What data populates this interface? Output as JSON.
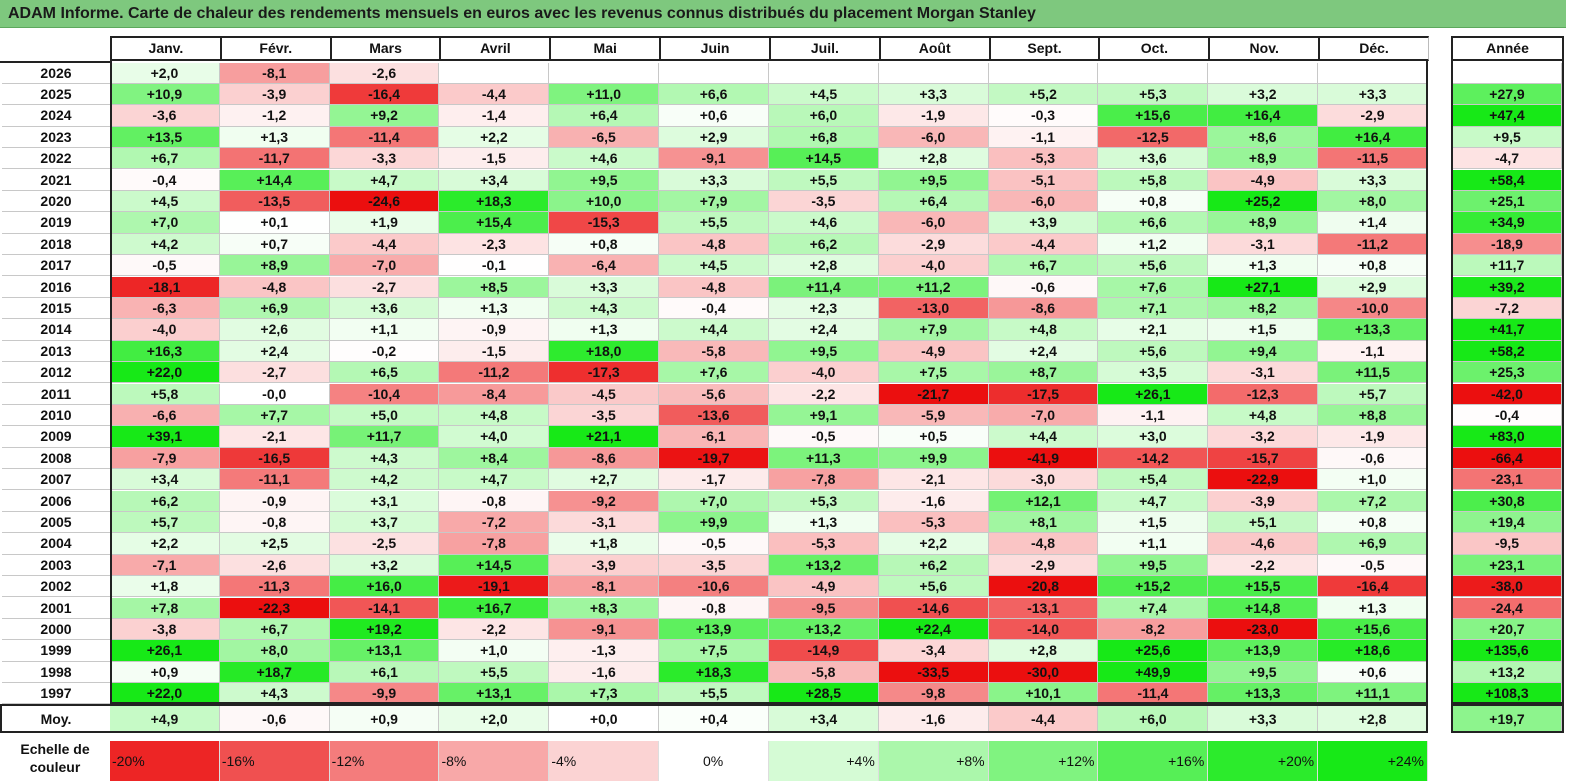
{
  "title": "ADAM Informe. Carte de chaleur des rendements mensuels en euros avec les revenus connus distribués du placement Morgan Stanley",
  "chart_data": {
    "type": "heatmap",
    "title": "ADAM Informe. Carte de chaleur des rendements mensuels en euros avec les revenus connus distribués du placement Morgan Stanley",
    "months": [
      "Janv.",
      "Févr.",
      "Mars",
      "Avril",
      "Mai",
      "Juin",
      "Juil.",
      "Août",
      "Sept.",
      "Oct.",
      "Nov.",
      "Déc."
    ],
    "annual_header": "Année",
    "rows": [
      {
        "year": "2026",
        "values": [
          "+2,0",
          "-8,1",
          "-2,6",
          "",
          "",
          "",
          "",
          "",
          "",
          "",
          "",
          ""
        ],
        "annual": ""
      },
      {
        "year": "2025",
        "values": [
          "+10,9",
          "-3,9",
          "-16,4",
          "-4,4",
          "+11,0",
          "+6,6",
          "+4,5",
          "+3,3",
          "+5,2",
          "+5,3",
          "+3,2",
          "+3,3"
        ],
        "annual": "+27,9"
      },
      {
        "year": "2024",
        "values": [
          "-3,6",
          "-1,2",
          "+9,2",
          "-1,4",
          "+6,4",
          "+0,6",
          "+6,0",
          "-1,9",
          "-0,3",
          "+15,6",
          "+16,4",
          "-2,9"
        ],
        "annual": "+47,4"
      },
      {
        "year": "2023",
        "values": [
          "+13,5",
          "+1,3",
          "-11,4",
          "+2,2",
          "-6,5",
          "+2,9",
          "+6,8",
          "-6,0",
          "-1,1",
          "-12,5",
          "+8,6",
          "+16,4"
        ],
        "annual": "+9,5"
      },
      {
        "year": "2022",
        "values": [
          "+6,7",
          "-11,7",
          "-3,3",
          "-1,5",
          "+4,6",
          "-9,1",
          "+14,5",
          "+2,8",
          "-5,3",
          "+3,6",
          "+8,9",
          "-11,5"
        ],
        "annual": "-4,7"
      },
      {
        "year": "2021",
        "values": [
          "-0,4",
          "+14,4",
          "+4,7",
          "+3,4",
          "+9,5",
          "+3,3",
          "+5,5",
          "+9,5",
          "-5,1",
          "+5,8",
          "-4,9",
          "+3,3"
        ],
        "annual": "+58,4"
      },
      {
        "year": "2020",
        "values": [
          "+4,5",
          "-13,5",
          "-24,6",
          "+18,3",
          "+10,0",
          "+7,9",
          "-3,5",
          "+6,4",
          "-6,0",
          "+0,8",
          "+25,2",
          "+8,0"
        ],
        "annual": "+25,1"
      },
      {
        "year": "2019",
        "values": [
          "+7,0",
          "+0,1",
          "+1,9",
          "+15,4",
          "-15,3",
          "+5,5",
          "+4,6",
          "-6,0",
          "+3,9",
          "+6,6",
          "+8,9",
          "+1,4"
        ],
        "annual": "+34,9"
      },
      {
        "year": "2018",
        "values": [
          "+4,2",
          "+0,7",
          "-4,4",
          "-2,3",
          "+0,8",
          "-4,8",
          "+6,2",
          "-2,9",
          "-4,4",
          "+1,2",
          "-3,1",
          "-11,2"
        ],
        "annual": "-18,9"
      },
      {
        "year": "2017",
        "values": [
          "-0,5",
          "+8,9",
          "-7,0",
          "-0,1",
          "-6,4",
          "+4,5",
          "+2,8",
          "-4,0",
          "+6,7",
          "+5,6",
          "+1,3",
          "+0,8"
        ],
        "annual": "+11,7"
      },
      {
        "year": "2016",
        "values": [
          "-18,1",
          "-4,8",
          "-2,7",
          "+8,5",
          "+3,3",
          "-4,8",
          "+11,4",
          "+11,2",
          "-0,6",
          "+7,6",
          "+27,1",
          "+2,9"
        ],
        "annual": "+39,2"
      },
      {
        "year": "2015",
        "values": [
          "-6,3",
          "+6,9",
          "+3,6",
          "+1,3",
          "+4,3",
          "-0,4",
          "+2,3",
          "-13,0",
          "-8,6",
          "+7,1",
          "+8,2",
          "-10,0"
        ],
        "annual": "-7,2"
      },
      {
        "year": "2014",
        "values": [
          "-4,0",
          "+2,6",
          "+1,1",
          "-0,9",
          "+1,3",
          "+4,4",
          "+2,4",
          "+7,9",
          "+4,8",
          "+2,1",
          "+1,5",
          "+13,3"
        ],
        "annual": "+41,7"
      },
      {
        "year": "2013",
        "values": [
          "+16,3",
          "+2,4",
          "-0,2",
          "-1,5",
          "+18,0",
          "-5,8",
          "+9,5",
          "-4,9",
          "+2,4",
          "+5,6",
          "+9,4",
          "-1,1"
        ],
        "annual": "+58,2"
      },
      {
        "year": "2012",
        "values": [
          "+22,0",
          "-2,7",
          "+6,5",
          "-11,2",
          "-17,3",
          "+7,6",
          "-4,0",
          "+7,5",
          "+8,7",
          "+3,5",
          "-3,1",
          "+11,5"
        ],
        "annual": "+25,3"
      },
      {
        "year": "2011",
        "values": [
          "+5,8",
          "-0,0",
          "-10,4",
          "-8,4",
          "-4,5",
          "-5,6",
          "-2,2",
          "-21,7",
          "-17,5",
          "+26,1",
          "-12,3",
          "+5,7"
        ],
        "annual": "-42,0"
      },
      {
        "year": "2010",
        "values": [
          "-6,6",
          "+7,7",
          "+5,0",
          "+4,8",
          "-3,5",
          "-13,6",
          "+9,1",
          "-5,9",
          "-7,0",
          "-1,1",
          "+4,8",
          "+8,8"
        ],
        "annual": "-0,4"
      },
      {
        "year": "2009",
        "values": [
          "+39,1",
          "-2,1",
          "+11,7",
          "+4,0",
          "+21,1",
          "-6,1",
          "-0,5",
          "+0,5",
          "+4,4",
          "+3,0",
          "-3,2",
          "-1,9"
        ],
        "annual": "+83,0"
      },
      {
        "year": "2008",
        "values": [
          "-7,9",
          "-16,5",
          "+4,3",
          "+8,4",
          "-8,6",
          "-19,7",
          "+11,3",
          "+9,9",
          "-41,9",
          "-14,2",
          "-15,7",
          "-0,6"
        ],
        "annual": "-66,4"
      },
      {
        "year": "2007",
        "values": [
          "+3,4",
          "-11,1",
          "+4,2",
          "+4,7",
          "+2,7",
          "-1,7",
          "-7,8",
          "-2,1",
          "-3,0",
          "+5,4",
          "-22,9",
          "+1,0"
        ],
        "annual": "-23,1"
      },
      {
        "year": "2006",
        "values": [
          "+6,2",
          "-0,9",
          "+3,1",
          "-0,8",
          "-9,2",
          "+7,0",
          "+5,3",
          "-1,6",
          "+12,1",
          "+4,7",
          "-3,9",
          "+7,2"
        ],
        "annual": "+30,8"
      },
      {
        "year": "2005",
        "values": [
          "+5,7",
          "-0,8",
          "+3,7",
          "-7,2",
          "-3,1",
          "+9,9",
          "+1,3",
          "-5,3",
          "+8,1",
          "+1,5",
          "+5,1",
          "+0,8"
        ],
        "annual": "+19,4"
      },
      {
        "year": "2004",
        "values": [
          "+2,2",
          "+2,5",
          "-2,5",
          "-7,8",
          "+1,8",
          "-0,5",
          "-5,3",
          "+2,2",
          "-4,8",
          "+1,1",
          "-4,6",
          "+6,9"
        ],
        "annual": "-9,5"
      },
      {
        "year": "2003",
        "values": [
          "-7,1",
          "-2,6",
          "+3,2",
          "+14,5",
          "-3,9",
          "-3,5",
          "+13,2",
          "+6,2",
          "-2,9",
          "+9,5",
          "-2,2",
          "-0,5"
        ],
        "annual": "+23,1"
      },
      {
        "year": "2002",
        "values": [
          "+1,8",
          "-11,3",
          "+16,0",
          "-19,1",
          "-8,1",
          "-10,6",
          "-4,9",
          "+5,6",
          "-20,8",
          "+15,2",
          "+15,5",
          "-16,4"
        ],
        "annual": "-38,0"
      },
      {
        "year": "2001",
        "values": [
          "+7,8",
          "-22,3",
          "-14,1",
          "+16,7",
          "+8,3",
          "-0,8",
          "-9,5",
          "-14,6",
          "-13,1",
          "+7,4",
          "+14,8",
          "+1,3"
        ],
        "annual": "-24,4"
      },
      {
        "year": "2000",
        "values": [
          "-3,8",
          "+6,7",
          "+19,2",
          "-2,2",
          "-9,1",
          "+13,9",
          "+13,2",
          "+22,4",
          "-14,0",
          "-8,2",
          "-23,0",
          "+15,6"
        ],
        "annual": "+20,7"
      },
      {
        "year": "1999",
        "values": [
          "+26,1",
          "+8,0",
          "+13,1",
          "+1,0",
          "-1,3",
          "+7,5",
          "-14,9",
          "-3,4",
          "+2,8",
          "+25,6",
          "+13,9",
          "+18,6"
        ],
        "annual": "+135,6"
      },
      {
        "year": "1998",
        "values": [
          "+0,9",
          "+18,7",
          "+6,1",
          "+5,5",
          "-1,6",
          "+18,3",
          "-5,8",
          "-33,5",
          "-30,0",
          "+49,9",
          "+9,5",
          "+0,6"
        ],
        "annual": "+13,2"
      },
      {
        "year": "1997",
        "values": [
          "+22,0",
          "+4,3",
          "-9,9",
          "+13,1",
          "+7,3",
          "+5,5",
          "+28,5",
          "-9,8",
          "+10,1",
          "-11,4",
          "+13,3",
          "+11,1"
        ],
        "annual": "+108,3"
      }
    ],
    "average_row": {
      "label": "Moy.",
      "values": [
        "+4,9",
        "-0,6",
        "+0,9",
        "+2,0",
        "+0,0",
        "+0,4",
        "+3,4",
        "-1,6",
        "-4,4",
        "+6,0",
        "+3,3",
        "+2,8"
      ],
      "annual": "+19,7"
    },
    "legend": {
      "label": "Echelle de couleur",
      "steps": [
        "-20%",
        "-16%",
        "-12%",
        "-8%",
        "-4%",
        "0%",
        "+4%",
        "+8%",
        "+12%",
        "+16%",
        "+20%",
        "+24%"
      ]
    }
  }
}
